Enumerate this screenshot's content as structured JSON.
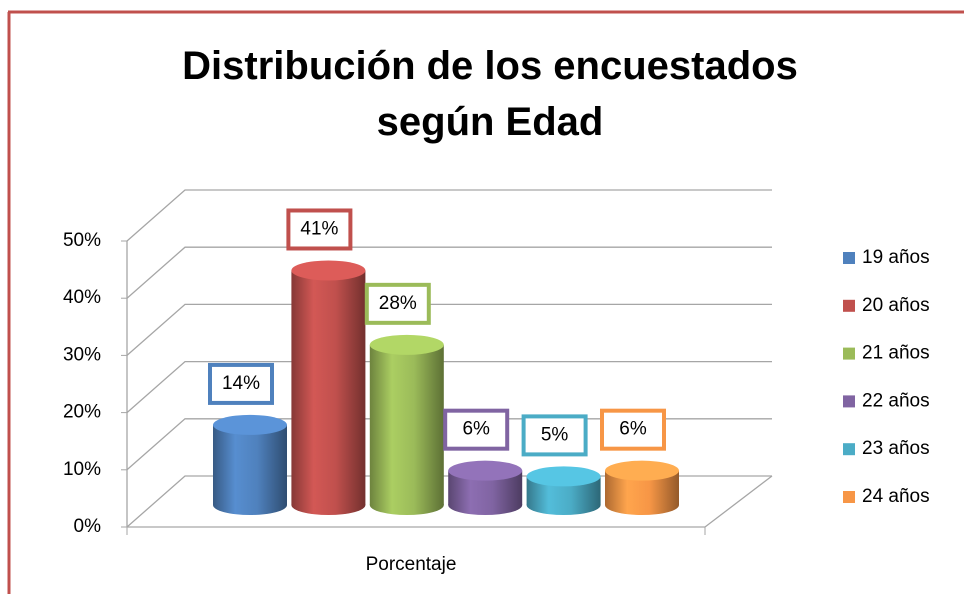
{
  "chart_data": {
    "type": "bar3d",
    "title": "Distribución de los encuestados según Edad",
    "categories": [
      "Porcentaje"
    ],
    "series": [
      {
        "name": "19 años",
        "color": "#4f81bd",
        "values": [
          14
        ],
        "value_labels": [
          "14%"
        ]
      },
      {
        "name": "20 años",
        "color": "#c0504d",
        "values": [
          41
        ],
        "value_labels": [
          "41%"
        ]
      },
      {
        "name": "21 años",
        "color": "#9bbb59",
        "values": [
          28
        ],
        "value_labels": [
          "28%"
        ]
      },
      {
        "name": "22 años",
        "color": "#8064a2",
        "values": [
          6
        ],
        "value_labels": [
          "6%"
        ]
      },
      {
        "name": "23 años",
        "color": "#4bacc6",
        "values": [
          5
        ],
        "value_labels": [
          "5%"
        ]
      },
      {
        "name": "24 años",
        "color": "#f79646",
        "values": [
          6
        ],
        "value_labels": [
          "6%"
        ]
      }
    ],
    "ylim": [
      0,
      50
    ],
    "yticks": [
      {
        "value": 0,
        "label": "0%"
      },
      {
        "value": 10,
        "label": "10%"
      },
      {
        "value": 20,
        "label": "20%"
      },
      {
        "value": 30,
        "label": "30%"
      },
      {
        "value": 40,
        "label": "40%"
      },
      {
        "value": 50,
        "label": "50%"
      }
    ],
    "grid": true,
    "legend": "right"
  }
}
